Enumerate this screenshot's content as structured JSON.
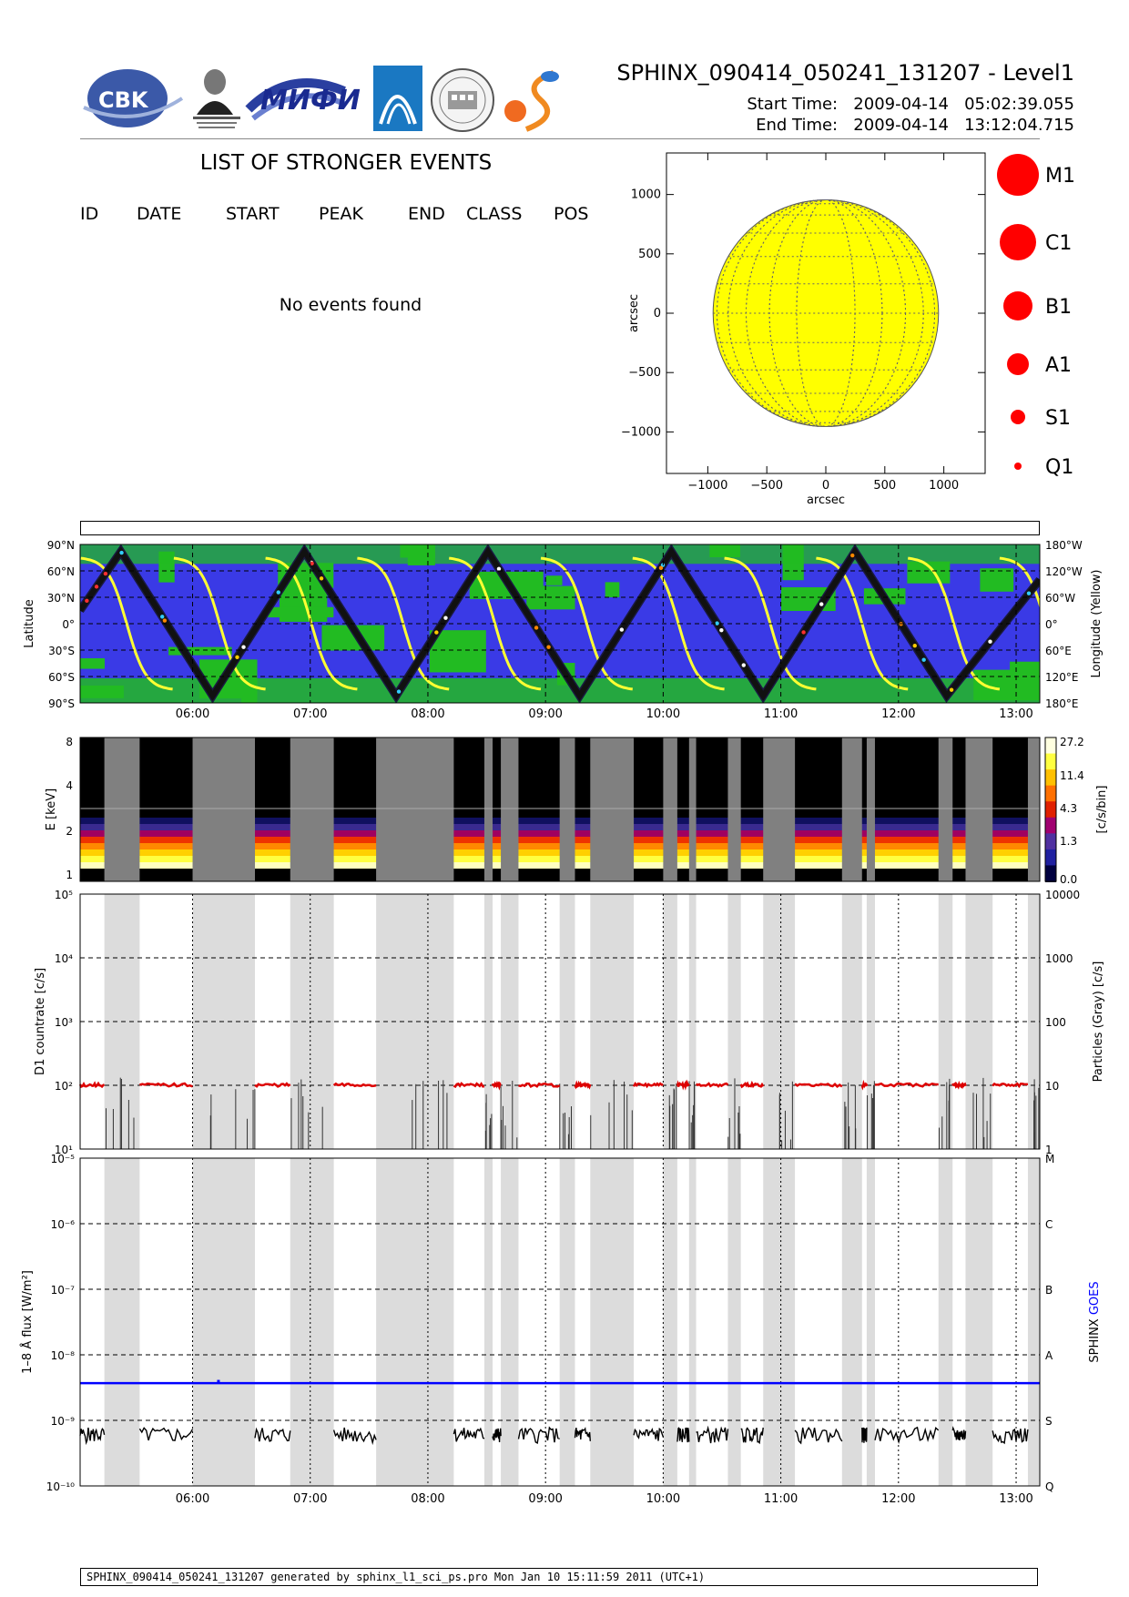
{
  "header": {
    "title": "SPHINX_090414_050241_131207 - Level1",
    "start_label": "Start Time:",
    "start_value": "2009-04-14   05:02:39.055",
    "end_label": "End Time:",
    "end_value": "2009-04-14   13:12:04.715",
    "logos": [
      "CBK PAN",
      "P.N.Lebedev Physical Institute of the Russian Academy of Science",
      "MIPhI",
      "wing-logo",
      "seal-logo",
      "S-logo"
    ]
  },
  "events": {
    "title": "LIST OF STRONGER EVENTS",
    "columns": [
      "ID",
      "DATE",
      "START",
      "PEAK",
      "END",
      "CLASS",
      "POS"
    ],
    "empty_text": "No events found"
  },
  "flare_legend": {
    "items": [
      {
        "label": "M1"
      },
      {
        "label": "C1"
      },
      {
        "label": "B1"
      },
      {
        "label": "A1"
      },
      {
        "label": "S1"
      },
      {
        "label": "Q1"
      }
    ],
    "color": "#ff0000"
  },
  "footer": {
    "text": "SPHINX_090414_050241_131207 generated by sphinx_l1_sci_ps.pro Mon Jan 10 15:11:59 2011 (UTC+1)"
  },
  "chart_data": [
    {
      "type": "scatter",
      "panel": "solar disk",
      "xlabel": "arcsec",
      "ylabel": "arcsec",
      "xlim": [
        -1350,
        1350
      ],
      "ylim": [
        -1350,
        1350
      ],
      "xticks": [
        "−1000",
        "−500",
        "0",
        "500",
        "1000"
      ],
      "yticks": [
        "1000",
        "500",
        "0",
        "−500",
        "−1000"
      ],
      "disk_radius": 955,
      "disk_color": "#ffff00",
      "events": []
    },
    {
      "type": "line",
      "panel": "orbit",
      "ylabel": "Latitude",
      "y2label": "Longitude (Yellow)",
      "yticks": [
        "90°N",
        "60°N",
        "30°N",
        "0°",
        "30°S",
        "60°S",
        "90°S"
      ],
      "y2ticks": [
        "180°W",
        "120°W",
        "60°W",
        "0°",
        "60°E",
        "120°E",
        "180°E"
      ],
      "xticks": [
        "06:00",
        "07:00",
        "08:00",
        "09:00",
        "10:00",
        "11:00",
        "12:00",
        "13:00"
      ],
      "x_range_hours": [
        5.044,
        13.201
      ],
      "latitude_track_turning_points": [
        {
          "t": 5.044,
          "lat": 15
        },
        {
          "t": 5.39,
          "lat": 82
        },
        {
          "t": 6.17,
          "lat": -82
        },
        {
          "t": 6.95,
          "lat": 82
        },
        {
          "t": 7.73,
          "lat": -82
        },
        {
          "t": 8.51,
          "lat": 82
        },
        {
          "t": 9.29,
          "lat": -82
        },
        {
          "t": 10.07,
          "lat": 82
        },
        {
          "t": 10.85,
          "lat": -82
        },
        {
          "t": 11.63,
          "lat": 82
        },
        {
          "t": 12.41,
          "lat": -82
        },
        {
          "t": 13.201,
          "lat": 50
        }
      ],
      "colors": {
        "background": "#3a3ae6",
        "region": "#22bb22",
        "track": "#111111",
        "longitude": "#ffff33"
      }
    },
    {
      "type": "heatmap",
      "panel": "spectrogram",
      "ylabel": "E [keV]",
      "colorbar_label": "[c/s/bin]",
      "yticks": [
        "8",
        "4",
        "2",
        "1"
      ],
      "colorbar_ticks": [
        "27.2",
        "11.4",
        "4.3",
        "1.3",
        "0.0"
      ],
      "xticks": [
        "06:00",
        "07:00",
        "08:00",
        "09:00",
        "10:00",
        "11:00",
        "12:00",
        "13:00"
      ]
    },
    {
      "type": "line",
      "panel": "countrate",
      "ylabel": "D1 countrate [c/s]",
      "y2label": "Particles (Gray) [c/s]",
      "yscale": "log",
      "ylim": [
        10,
        100000
      ],
      "yticks": [
        "10⁵",
        "10⁴",
        "10³",
        "10²",
        "10¹"
      ],
      "y2ticks": [
        "10000",
        "1000",
        "100",
        "10",
        "1"
      ],
      "xticks": [
        "06:00",
        "07:00",
        "08:00",
        "09:00",
        "10:00",
        "11:00",
        "12:00",
        "13:00"
      ],
      "series": [
        {
          "color": "#dd0000",
          "level": 100
        }
      ]
    },
    {
      "type": "line",
      "panel": "flux",
      "ylabel": "1–8 Å flux [W/m²]",
      "y2label_parts": [
        "SPHINX",
        "GOES"
      ],
      "yscale": "log",
      "ylim": [
        1e-10,
        1e-05
      ],
      "yticks": [
        "10⁻⁵",
        "10⁻⁶",
        "10⁻⁷",
        "10⁻⁸",
        "10⁻⁹",
        "10⁻¹⁰"
      ],
      "y2ticks": [
        "M",
        "C",
        "B",
        "A",
        "S",
        "Q"
      ],
      "xticks": [
        "06:00",
        "07:00",
        "08:00",
        "09:00",
        "10:00",
        "11:00",
        "12:00",
        "13:00"
      ],
      "series": [
        {
          "name": "GOES",
          "color": "#0000ff",
          "value": 3.7e-09
        },
        {
          "name": "SPHINX",
          "color": "#000000",
          "value": 6e-10
        }
      ]
    }
  ],
  "gaps_hours": [
    [
      5.25,
      5.55
    ],
    [
      6.0,
      6.53
    ],
    [
      6.83,
      7.2
    ],
    [
      7.56,
      8.22
    ],
    [
      8.48,
      8.55
    ],
    [
      8.62,
      8.77
    ],
    [
      9.12,
      9.25
    ],
    [
      9.38,
      9.75
    ],
    [
      10.0,
      10.12
    ],
    [
      10.22,
      10.28
    ],
    [
      10.55,
      10.66
    ],
    [
      10.85,
      11.12
    ],
    [
      11.52,
      11.69
    ],
    [
      11.73,
      11.8
    ],
    [
      12.34,
      12.46
    ],
    [
      12.57,
      12.8
    ],
    [
      13.1,
      13.201
    ]
  ]
}
